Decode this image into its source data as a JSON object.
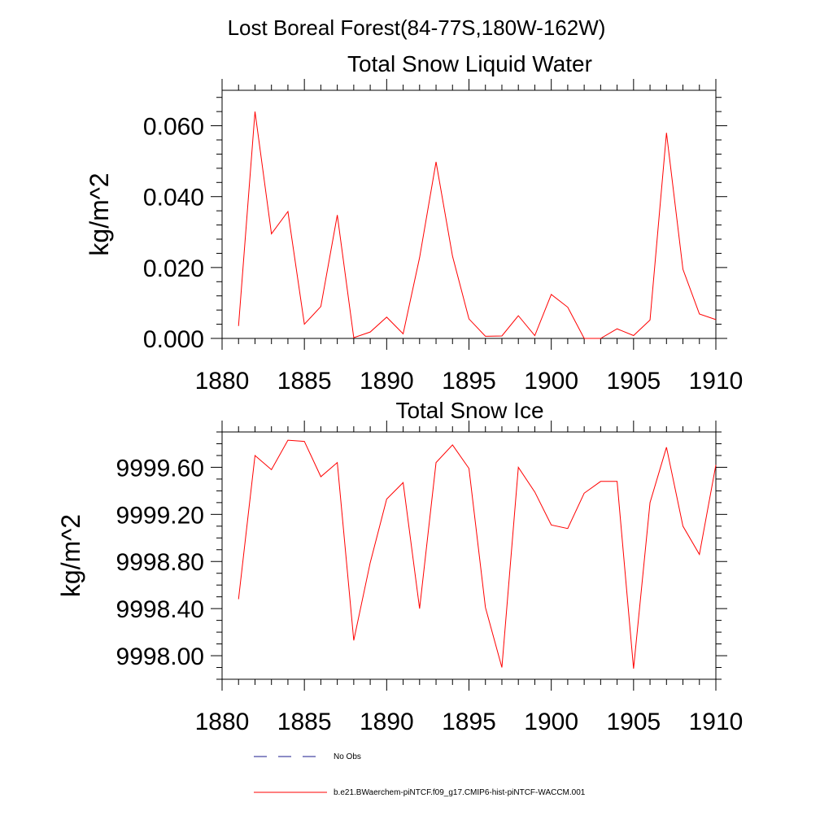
{
  "page_title": "Lost Boreal Forest(84-77S,180W-162W)",
  "legend": {
    "placement": "bottom",
    "entries": [
      {
        "label": "No Obs",
        "style": "dashed",
        "color": "#1a1a8c"
      },
      {
        "label": "b.e21.BWaerchem-piNTCF.f09_g17.CMIP6-hist-piNTCF-WACCM.001",
        "style": "solid",
        "color": "#ff0000"
      }
    ]
  },
  "chart_data": [
    {
      "type": "line",
      "title": "Total Snow Liquid Water",
      "xlabel": "",
      "ylabel": "kg/m^2",
      "xlim": [
        1880,
        1910
      ],
      "ylim": [
        0.0,
        0.07
      ],
      "xticks": [
        1880,
        1885,
        1890,
        1895,
        1900,
        1905,
        1910
      ],
      "xtick_labels": [
        "1880",
        "1885",
        "1890",
        "1895",
        "1900",
        "1905",
        "1910"
      ],
      "yticks": [
        0.0,
        0.02,
        0.04,
        0.06
      ],
      "ytick_labels": [
        "0.000",
        "0.020",
        "0.040",
        "0.060"
      ],
      "grid": false,
      "series": [
        {
          "name": "b.e21.BWaerchem-piNTCF.f09_g17.CMIP6-hist-piNTCF-WACCM.001",
          "color": "#ff0000",
          "x": [
            1881,
            1882,
            1883,
            1884,
            1885,
            1886,
            1887,
            1888,
            1889,
            1890,
            1891,
            1892,
            1893,
            1894,
            1895,
            1896,
            1897,
            1898,
            1899,
            1900,
            1901,
            1902,
            1903,
            1904,
            1905,
            1906,
            1907,
            1908,
            1909,
            1910
          ],
          "values": [
            0.0035,
            0.064,
            0.0295,
            0.0358,
            0.004,
            0.009,
            0.0348,
            0.0002,
            0.0018,
            0.006,
            0.0013,
            0.0228,
            0.0498,
            0.0232,
            0.0055,
            0.0006,
            0.0007,
            0.0064,
            0.0008,
            0.0124,
            0.0088,
            0.0,
            0.0,
            0.0027,
            0.0008,
            0.0052,
            0.058,
            0.0195,
            0.0069,
            0.0053
          ]
        }
      ]
    },
    {
      "type": "line",
      "title": "Total Snow Ice",
      "xlabel": "",
      "ylabel": "kg/m^2",
      "xlim": [
        1880,
        1910
      ],
      "ylim": [
        9997.8,
        9999.9
      ],
      "xticks": [
        1880,
        1885,
        1890,
        1895,
        1900,
        1905,
        1910
      ],
      "xtick_labels": [
        "1880",
        "1885",
        "1890",
        "1895",
        "1900",
        "1905",
        "1910"
      ],
      "yticks": [
        9998.0,
        9998.4,
        9998.8,
        9999.2,
        9999.6
      ],
      "ytick_labels": [
        "9998.00",
        "9998.40",
        "9998.80",
        "9999.20",
        "9999.60"
      ],
      "grid": false,
      "series": [
        {
          "name": "b.e21.BWaerchem-piNTCF.f09_g17.CMIP6-hist-piNTCF-WACCM.001",
          "color": "#ff0000",
          "x": [
            1881,
            1882,
            1883,
            1884,
            1885,
            1886,
            1887,
            1888,
            1889,
            1890,
            1891,
            1892,
            1893,
            1894,
            1895,
            1896,
            1897,
            1898,
            1899,
            1900,
            1901,
            1902,
            1903,
            1904,
            1905,
            1906,
            1907,
            1908,
            1909,
            1910
          ],
          "values": [
            9998.48,
            9999.7,
            9999.58,
            9999.83,
            9999.82,
            9999.52,
            9999.64,
            9998.13,
            9998.79,
            9999.33,
            9999.47,
            9998.4,
            9999.64,
            9999.79,
            9999.59,
            9998.41,
            9997.9,
            9999.6,
            9999.39,
            9999.11,
            9999.08,
            9999.38,
            9999.48,
            9999.48,
            9997.89,
            9999.3,
            9999.77,
            9999.1,
            9998.86,
            9999.62
          ]
        }
      ]
    }
  ]
}
